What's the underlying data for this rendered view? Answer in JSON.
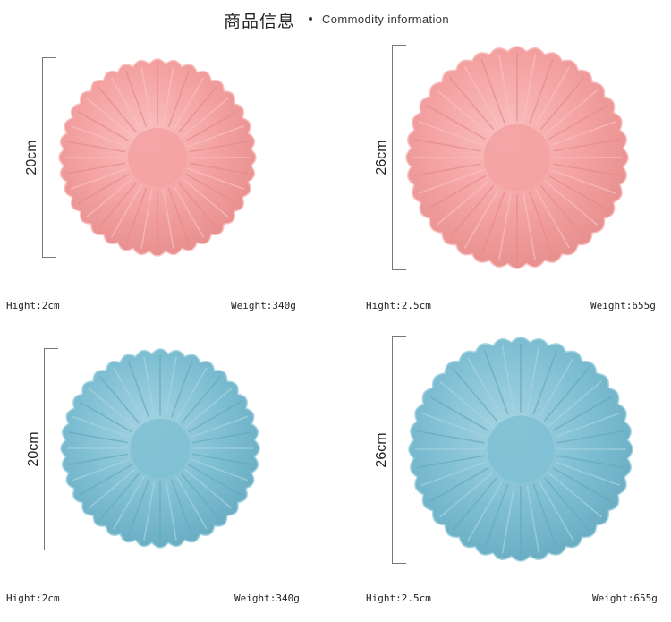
{
  "header": {
    "title_cn": "商品信息",
    "title_en": "Commodity information"
  },
  "items": [
    {
      "size_label": "20cm",
      "height_label": "Hight:2cm",
      "weight_label": "Weight:340g",
      "color": "#f4a1a1",
      "shade": "#e58c8c",
      "light": "#f9c0bf"
    },
    {
      "size_label": "26cm",
      "height_label": "Hight:2.5cm",
      "weight_label": "Weight:655g",
      "color": "#f4a1a1",
      "shade": "#e58c8c",
      "light": "#f9c0bf"
    },
    {
      "size_label": "20cm",
      "height_label": "Hight:2cm",
      "weight_label": "Weight:340g",
      "color": "#7fbfd3",
      "shade": "#66aac0",
      "light": "#a6d4e2"
    },
    {
      "size_label": "26cm",
      "height_label": "Hight:2.5cm",
      "weight_label": "Weight:655g",
      "color": "#7fbfd3",
      "shade": "#66aac0",
      "light": "#a6d4e2"
    }
  ]
}
